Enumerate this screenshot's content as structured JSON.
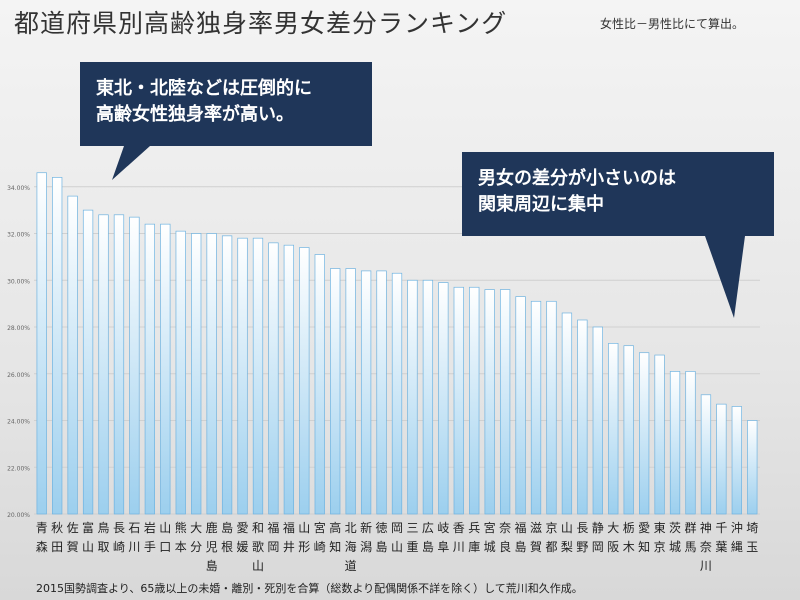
{
  "title": "都道府県別高齢独身率男女差分ランキング",
  "subtitle": "女性比－男性比にて算出。",
  "footnote": "2015国勢調査より、65歳以上の未婚・離別・死別を合算（総数より配偶関係不詳を除く）して荒川和久作成。",
  "callouts": [
    {
      "lines": [
        "東北・北陸などは圧倒的に",
        "高齢女性独身率が高い。"
      ]
    },
    {
      "lines": [
        "男女の差分が小さいのは",
        "関東周辺に集中"
      ]
    }
  ],
  "colors": {
    "bar_top": "#ffffff",
    "bar_bottom": "#9ccfee",
    "bar_stroke": "#6fb3e0",
    "callout": "#1f3659"
  },
  "chart_data": {
    "type": "bar",
    "title": "都道府県別高齢独身率男女差分ランキング",
    "xlabel": "",
    "ylabel": "",
    "ylim": [
      0.2,
      0.36
    ],
    "yticks": [
      0.2,
      0.22,
      0.24,
      0.26,
      0.28,
      0.3,
      0.32,
      0.34
    ],
    "ytick_labels": [
      "20.00%",
      "22.00%",
      "24.00%",
      "26.00%",
      "28.00%",
      "30.00%",
      "32.00%",
      "34.00%"
    ],
    "grid": true,
    "categories": [
      [
        "青",
        "森"
      ],
      [
        "秋",
        "田"
      ],
      [
        "佐",
        "賀"
      ],
      [
        "富",
        "山"
      ],
      [
        "鳥",
        "取"
      ],
      [
        "長",
        "崎"
      ],
      [
        "石",
        "川"
      ],
      [
        "岩",
        "手"
      ],
      [
        "山",
        "口"
      ],
      [
        "熊",
        "本"
      ],
      [
        "大",
        "分"
      ],
      [
        "鹿",
        "児",
        "島"
      ],
      [
        "島",
        "根"
      ],
      [
        "愛",
        "媛"
      ],
      [
        "和",
        "歌",
        "山"
      ],
      [
        "福",
        "岡"
      ],
      [
        "福",
        "井"
      ],
      [
        "山",
        "形"
      ],
      [
        "宮",
        "崎"
      ],
      [
        "高",
        "知"
      ],
      [
        "北",
        "海",
        "道"
      ],
      [
        "新",
        "潟"
      ],
      [
        "徳",
        "島"
      ],
      [
        "岡",
        "山"
      ],
      [
        "三",
        "重"
      ],
      [
        "広",
        "島"
      ],
      [
        "岐",
        "阜"
      ],
      [
        "香",
        "川"
      ],
      [
        "兵",
        "庫"
      ],
      [
        "宮",
        "城"
      ],
      [
        "奈",
        "良"
      ],
      [
        "福",
        "島"
      ],
      [
        "滋",
        "賀"
      ],
      [
        "京",
        "都"
      ],
      [
        "山",
        "梨"
      ],
      [
        "長",
        "野"
      ],
      [
        "静",
        "岡"
      ],
      [
        "大",
        "阪"
      ],
      [
        "栃",
        "木"
      ],
      [
        "愛",
        "知"
      ],
      [
        "東",
        "京"
      ],
      [
        "茨",
        "城"
      ],
      [
        "群",
        "馬"
      ],
      [
        "神",
        "奈",
        "川"
      ],
      [
        "千",
        "葉"
      ],
      [
        "沖",
        "縄"
      ],
      [
        "埼",
        "玉"
      ]
    ],
    "values": [
      0.346,
      0.344,
      0.336,
      0.33,
      0.328,
      0.328,
      0.327,
      0.324,
      0.324,
      0.321,
      0.32,
      0.32,
      0.319,
      0.318,
      0.318,
      0.316,
      0.315,
      0.314,
      0.311,
      0.305,
      0.305,
      0.304,
      0.304,
      0.303,
      0.3,
      0.3,
      0.299,
      0.297,
      0.297,
      0.296,
      0.296,
      0.293,
      0.291,
      0.291,
      0.286,
      0.283,
      0.28,
      0.273,
      0.272,
      0.269,
      0.268,
      0.261,
      0.261,
      0.251,
      0.247,
      0.246,
      0.24
    ]
  }
}
